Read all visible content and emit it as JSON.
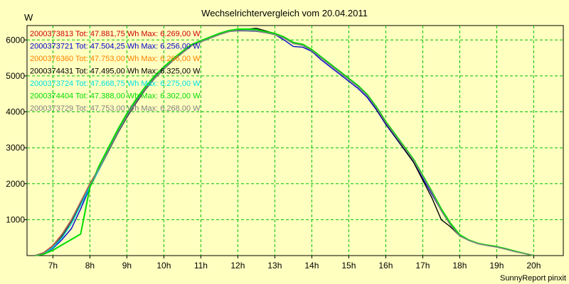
{
  "chart_data": {
    "type": "line",
    "title": "Wechselrichtervergleich vom 20.04.2011",
    "xlabel": "",
    "ylabel": "W",
    "footer": "SunnyReport pinxit",
    "xlim": [
      6.3,
      20.8
    ],
    "ylim": [
      0,
      6400
    ],
    "x_ticks": [
      7,
      8,
      9,
      10,
      11,
      12,
      13,
      14,
      15,
      16,
      17,
      18,
      19,
      20
    ],
    "x_tick_labels": [
      "7h",
      "8h",
      "9h",
      "10h",
      "11h",
      "12h",
      "13h",
      "14h",
      "15h",
      "16h",
      "17h",
      "18h",
      "19h",
      "20h"
    ],
    "y_ticks": [
      1000,
      2000,
      3000,
      4000,
      5000,
      6000
    ],
    "y_tick_labels": [
      "1000",
      "2000",
      "3000",
      "4000",
      "5000",
      "6000"
    ],
    "grid": true,
    "legend_position": "top-left",
    "x": [
      6.5,
      6.75,
      7.0,
      7.25,
      7.5,
      7.75,
      8.0,
      8.25,
      8.5,
      8.75,
      9.0,
      9.25,
      9.5,
      9.75,
      10.0,
      10.25,
      10.5,
      10.75,
      11.0,
      11.25,
      11.5,
      11.75,
      12.0,
      12.25,
      12.5,
      12.75,
      13.0,
      13.25,
      13.5,
      13.75,
      14.0,
      14.25,
      14.5,
      14.75,
      15.0,
      15.25,
      15.5,
      15.75,
      16.0,
      16.25,
      16.5,
      16.75,
      17.0,
      17.25,
      17.5,
      17.75,
      18.0,
      18.25,
      18.5,
      18.75,
      19.0,
      19.25,
      19.5,
      19.75,
      20.0
    ],
    "series": [
      {
        "name": "2000373813",
        "legend": "2000373813 Tot: 47.881,75 Wh Max: 6.269,00 W",
        "color": "#cc0000",
        "values": [
          0,
          80,
          280,
          600,
          1000,
          1500,
          2000,
          2450,
          2950,
          3450,
          3900,
          4300,
          4650,
          4950,
          5200,
          5450,
          5650,
          5850,
          5950,
          6050,
          6150,
          6230,
          6269,
          6260,
          6250,
          6200,
          6150,
          6050,
          5900,
          5850,
          5700,
          5500,
          5300,
          5100,
          4900,
          4700,
          4450,
          4100,
          3700,
          3350,
          3000,
          2650,
          2200,
          1750,
          1250,
          850,
          550,
          420,
          330,
          280,
          240,
          180,
          110,
          60,
          0
        ]
      },
      {
        "name": "2000373721",
        "legend": "2000373721 Tot: 47.504,25 Wh Max: 6.256,00 W",
        "color": "#0000cc",
        "values": [
          0,
          60,
          200,
          450,
          750,
          1300,
          1900,
          2400,
          2950,
          3450,
          3900,
          4300,
          4650,
          4950,
          5200,
          5450,
          5650,
          5850,
          5950,
          6050,
          6150,
          6230,
          6256,
          6250,
          6240,
          6200,
          6150,
          6000,
          5820,
          5800,
          5680,
          5450,
          5250,
          5050,
          4850,
          4650,
          4400,
          4050,
          3650,
          3300,
          2950,
          2600,
          2150,
          1700,
          1250,
          850,
          550,
          420,
          330,
          280,
          240,
          180,
          110,
          60,
          0
        ]
      },
      {
        "name": "2000376360",
        "legend": "2000376360 Tot: 47.753,00 Wh Max: 6.266,00 W",
        "color": "#ff8000",
        "values": [
          0,
          70,
          260,
          580,
          980,
          1480,
          1980,
          2430,
          2930,
          3430,
          3880,
          4280,
          4640,
          4940,
          5200,
          5440,
          5650,
          5840,
          5950,
          6050,
          6150,
          6230,
          6266,
          6260,
          6250,
          6200,
          6150,
          6050,
          5900,
          5850,
          5700,
          5500,
          5300,
          5100,
          4900,
          4700,
          4450,
          4100,
          3700,
          3350,
          3000,
          2650,
          2200,
          1750,
          1250,
          850,
          550,
          420,
          330,
          280,
          240,
          180,
          110,
          60,
          0
        ]
      },
      {
        "name": "2000374431",
        "legend": "2000374431 Tot: 47.495,00 Wh Max: 6.325,00 W",
        "color": "#000000",
        "values": [
          0,
          70,
          250,
          550,
          950,
          1450,
          1950,
          2400,
          2900,
          3400,
          3850,
          4250,
          4620,
          4930,
          5190,
          5430,
          5640,
          5840,
          5950,
          6050,
          6150,
          6230,
          6280,
          6300,
          6325,
          6250,
          6180,
          6080,
          5920,
          5870,
          5720,
          5520,
          5320,
          5120,
          4920,
          4720,
          4450,
          4080,
          3680,
          3320,
          2960,
          2600,
          2100,
          1600,
          1000,
          800,
          550,
          420,
          330,
          280,
          240,
          180,
          110,
          60,
          0
        ]
      },
      {
        "name": "2000373724",
        "legend": "2000373724 Tot: 47.668,75 Wh Max: 6.275,00 W",
        "color": "#00e0e0",
        "values": [
          0,
          60,
          220,
          500,
          880,
          1400,
          1920,
          2400,
          2920,
          3420,
          3880,
          4280,
          4640,
          4940,
          5200,
          5440,
          5650,
          5840,
          5950,
          6050,
          6150,
          6230,
          6270,
          6275,
          6260,
          6200,
          6150,
          6050,
          5900,
          5850,
          5700,
          5500,
          5300,
          5100,
          4900,
          4700,
          4450,
          4100,
          3700,
          3350,
          3000,
          2650,
          2200,
          1750,
          1250,
          850,
          550,
          420,
          330,
          280,
          240,
          180,
          110,
          60,
          0
        ]
      },
      {
        "name": "2000374404",
        "legend": "2000374404 Tot: 47.388,00 Wh Max: 6.302,00 W",
        "color": "#00dd00",
        "values": [
          0,
          40,
          150,
          300,
          450,
          600,
          1900,
          2500,
          3000,
          3500,
          3950,
          4350,
          4700,
          5000,
          5250,
          5480,
          5680,
          5870,
          5980,
          6080,
          6180,
          6260,
          6300,
          6302,
          6290,
          6230,
          6180,
          6080,
          5930,
          5880,
          5730,
          5530,
          5330,
          5130,
          4930,
          4730,
          4480,
          4130,
          3730,
          3380,
          3030,
          2680,
          2230,
          1780,
          1300,
          900,
          580,
          430,
          340,
          290,
          250,
          190,
          120,
          60,
          0
        ]
      },
      {
        "name": "2000373729",
        "legend": "2000373729 Tot: 47.753,00 Wh Max: 6.268,00 W",
        "color": "#808080",
        "values": [
          0,
          70,
          260,
          580,
          980,
          1480,
          1980,
          2430,
          2930,
          3430,
          3880,
          4280,
          4640,
          4940,
          5200,
          5440,
          5650,
          5840,
          5950,
          6050,
          6150,
          6230,
          6268,
          6260,
          6250,
          6200,
          6150,
          6050,
          5900,
          5850,
          5700,
          5500,
          5300,
          5100,
          4900,
          4700,
          4450,
          4100,
          3700,
          3350,
          3000,
          2650,
          2200,
          1750,
          1250,
          850,
          550,
          420,
          330,
          280,
          240,
          180,
          110,
          60,
          0
        ]
      }
    ]
  }
}
